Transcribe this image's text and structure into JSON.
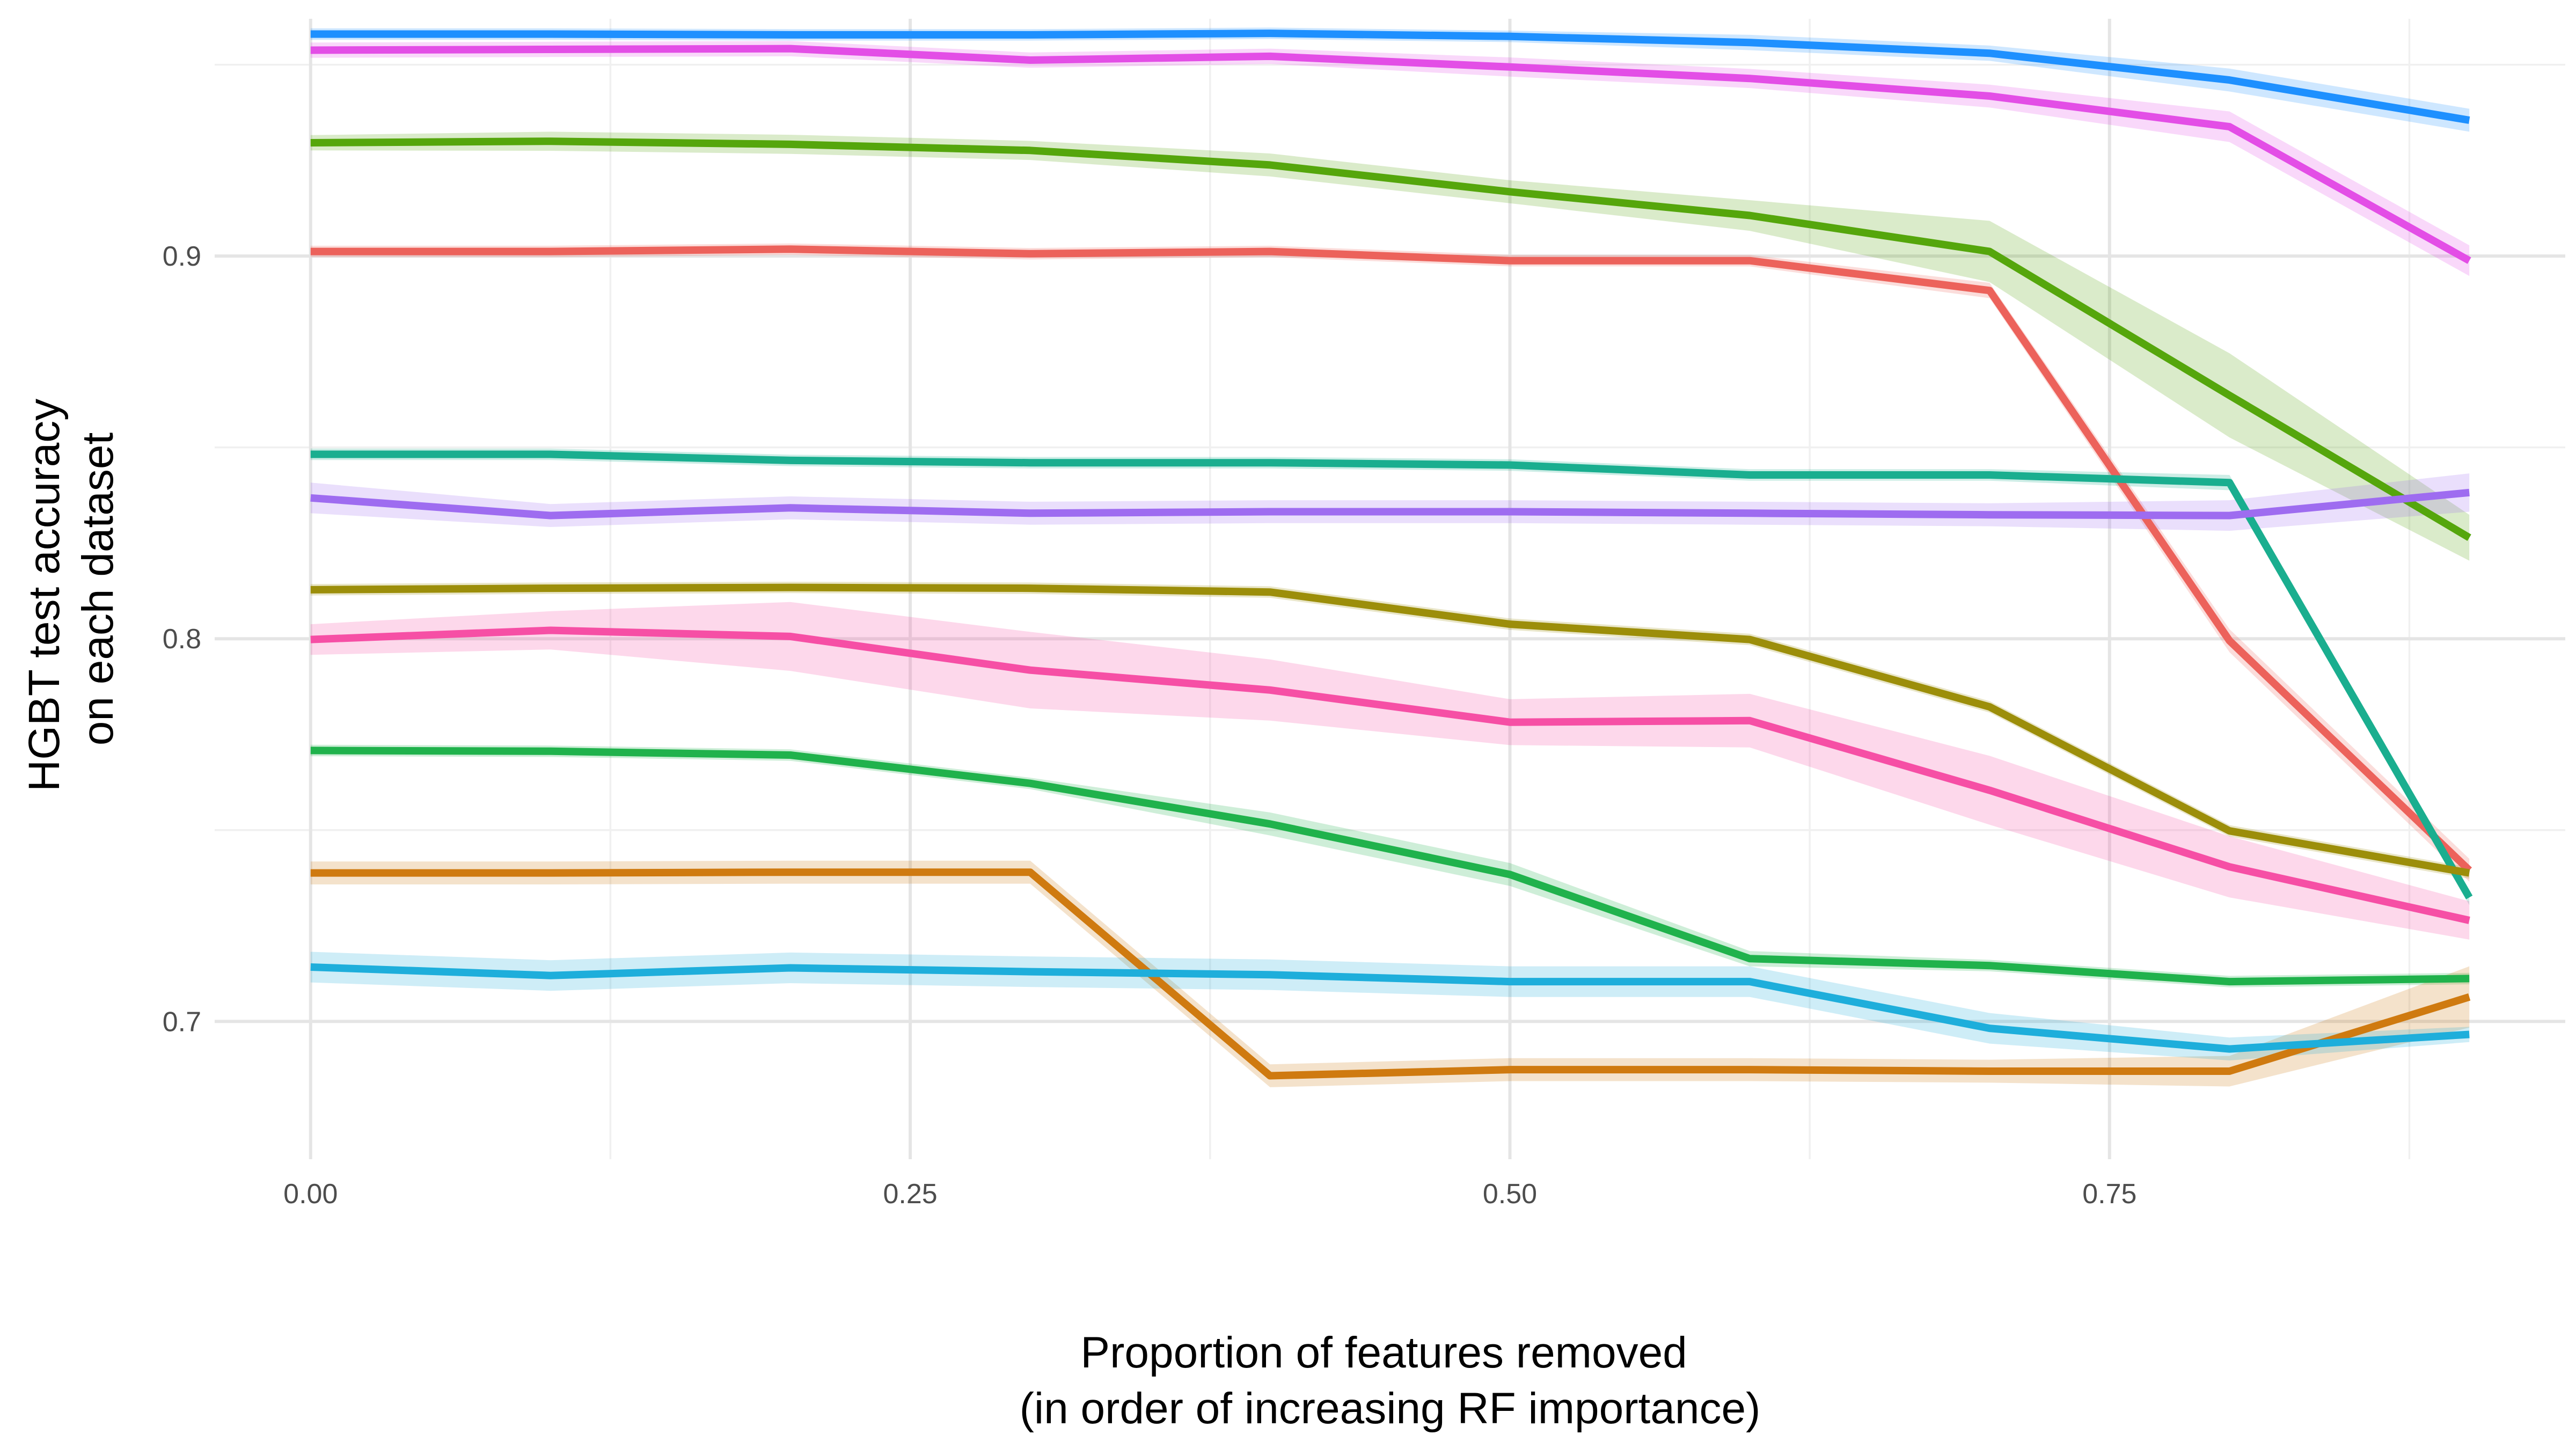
{
  "chart_data": {
    "type": "line",
    "xlabel_lines": [
      "Proportion of features removed",
      "(in order of increasing RF importance)"
    ],
    "ylabel_lines": [
      "HGBT test accuracy",
      "on each dataset"
    ],
    "xlim": [
      -0.04,
      0.94
    ],
    "ylim": [
      0.664,
      0.962
    ],
    "x_ticks": [
      0.0,
      0.25,
      0.5,
      0.75
    ],
    "x_tick_labels": [
      "0.00",
      "0.25",
      "0.50",
      "0.75"
    ],
    "x_minor_ticks": [
      0.125,
      0.375,
      0.625,
      0.875
    ],
    "y_ticks": [
      0.7,
      0.8,
      0.9
    ],
    "y_tick_labels": [
      "0.7",
      "0.8",
      "0.9"
    ],
    "y_minor_ticks": [
      0.75,
      0.85,
      0.95
    ],
    "grid": true,
    "legend": "none",
    "x": [
      0.0,
      0.1,
      0.2,
      0.3,
      0.4,
      0.5,
      0.6,
      0.7,
      0.8,
      0.9
    ],
    "series": [
      {
        "color": "#1E90FF",
        "values": [
          0.958,
          0.958,
          0.9578,
          0.9578,
          0.9582,
          0.9574,
          0.9558,
          0.953,
          0.946,
          0.9355
        ],
        "band": [
          0.0015,
          0.0015,
          0.0015,
          0.0015,
          0.0015,
          0.0015,
          0.002,
          0.002,
          0.003,
          0.003
        ]
      },
      {
        "color": "#E34EE6",
        "values": [
          0.9538,
          0.954,
          0.9542,
          0.9512,
          0.9522,
          0.9494,
          0.9464,
          0.9418,
          0.9338,
          0.8988
        ],
        "band": [
          0.002,
          0.002,
          0.002,
          0.002,
          0.002,
          0.0025,
          0.0025,
          0.003,
          0.004,
          0.004
        ]
      },
      {
        "color": "#55A60C",
        "values": [
          0.9296,
          0.93,
          0.9292,
          0.9276,
          0.9238,
          0.9168,
          0.9106,
          0.9012,
          0.8636,
          0.8264
        ],
        "band": [
          0.002,
          0.0025,
          0.0025,
          0.0025,
          0.003,
          0.003,
          0.004,
          0.008,
          0.011,
          0.006
        ]
      },
      {
        "color": "#EC625B",
        "values": [
          0.9012,
          0.9012,
          0.9018,
          0.9006,
          0.9012,
          0.8988,
          0.8988,
          0.891,
          0.7995,
          0.7395
        ],
        "band": [
          0.0015,
          0.0015,
          0.0015,
          0.0015,
          0.0015,
          0.0015,
          0.0015,
          0.002,
          0.003,
          0.003
        ]
      },
      {
        "color": "#1AAE8F",
        "values": [
          0.8482,
          0.8482,
          0.8466,
          0.846,
          0.846,
          0.8454,
          0.8428,
          0.8428,
          0.8408,
          0.7324
        ],
        "band": [
          0.0015,
          0.0015,
          0.0015,
          0.0015,
          0.0015,
          0.0015,
          0.0015,
          0.0015,
          0.002,
          0.002
        ]
      },
      {
        "color": "#9E6CF0",
        "values": [
          0.8368,
          0.8322,
          0.8342,
          0.8328,
          0.8332,
          0.8332,
          0.8328,
          0.8324,
          0.8322,
          0.8382
        ],
        "band": [
          0.004,
          0.003,
          0.003,
          0.003,
          0.003,
          0.003,
          0.003,
          0.003,
          0.004,
          0.005
        ]
      },
      {
        "color": "#9C8E0A",
        "values": [
          0.8128,
          0.8132,
          0.8134,
          0.8132,
          0.8122,
          0.8038,
          0.7998,
          0.7822,
          0.7498,
          0.7388
        ],
        "band": [
          0.0015,
          0.0015,
          0.0015,
          0.0015,
          0.0015,
          0.0015,
          0.0015,
          0.0015,
          0.0015,
          0.0015
        ]
      },
      {
        "color": "#F64FA5",
        "values": [
          0.7998,
          0.8022,
          0.8006,
          0.7918,
          0.7866,
          0.7782,
          0.7786,
          0.7604,
          0.7404,
          0.7264
        ],
        "band": [
          0.004,
          0.005,
          0.009,
          0.01,
          0.008,
          0.006,
          0.007,
          0.009,
          0.008,
          0.005
        ]
      },
      {
        "color": "#20B24C",
        "values": [
          0.7708,
          0.7706,
          0.7696,
          0.7622,
          0.7516,
          0.7384,
          0.7164,
          0.7146,
          0.7104,
          0.7112
        ],
        "band": [
          0.0015,
          0.0015,
          0.0015,
          0.0015,
          0.003,
          0.003,
          0.002,
          0.0015,
          0.0015,
          0.0015
        ]
      },
      {
        "color": "#CF7A10",
        "values": [
          0.7388,
          0.7388,
          0.739,
          0.739,
          0.6858,
          0.6874,
          0.6874,
          0.687,
          0.687,
          0.7064
        ],
        "band": [
          0.003,
          0.003,
          0.003,
          0.003,
          0.003,
          0.003,
          0.003,
          0.003,
          0.004,
          0.008
        ]
      },
      {
        "color": "#1EAEDB",
        "values": [
          0.7142,
          0.712,
          0.714,
          0.713,
          0.7122,
          0.7104,
          0.7104,
          0.6982,
          0.6928,
          0.6966
        ],
        "band": [
          0.004,
          0.004,
          0.004,
          0.004,
          0.004,
          0.004,
          0.004,
          0.004,
          0.003,
          0.002
        ]
      }
    ]
  }
}
